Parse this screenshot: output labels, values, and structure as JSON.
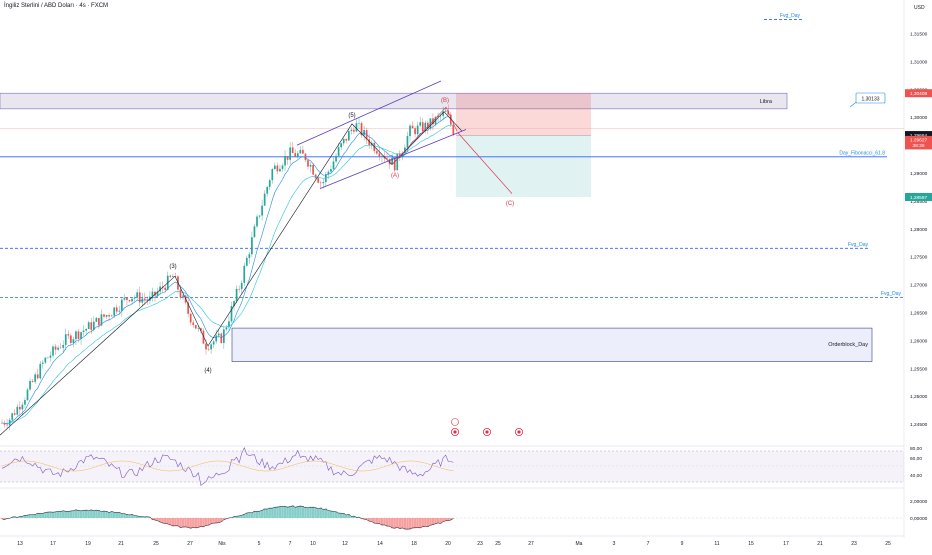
{
  "header": {
    "symbol_title": "İngiliz Sterlini / ABD Doları · 4s · FXCM",
    "currency": "USD"
  },
  "colors": {
    "up": "#26a69a",
    "down": "#ef5350",
    "blue_line": "#2962ff",
    "wave_purple": "#5b3cc4",
    "wave_red": "#e0314b",
    "ema": "#1e88e5",
    "grid": "#eef0f3"
  },
  "chart_data": {
    "type": "candlestick",
    "instrument": "GBP/USD",
    "timeframe": "4s",
    "y_axis": {
      "ticks": [
        "1,31500",
        "1,31000",
        "1,30500",
        "1,30000",
        "1,29500",
        "1,29000",
        "1,28500",
        "1,28000",
        "1,27500",
        "1,27000",
        "1,26500",
        "1,26000",
        "1,25500",
        "1,25000",
        "1,24500"
      ],
      "ylim": [
        1.2425,
        1.3185
      ]
    },
    "x_axis": {
      "ticks": [
        "13",
        "17",
        "19",
        "21",
        "25",
        "27",
        "Nis",
        "5",
        "7",
        "10",
        "12",
        "14",
        "18",
        "20",
        "23",
        "25",
        "27",
        "Ma",
        "3",
        "7",
        "9",
        "11",
        "15",
        "17",
        "21",
        "23",
        "25"
      ]
    },
    "price_labels": [
      {
        "text": "1,30408",
        "color": "#ef5350"
      },
      {
        "text": "1,29664",
        "color": "#131722"
      },
      {
        "text": "1,29627",
        "color": "#ef5350"
      },
      {
        "text": "38:38",
        "color": "#ef5350"
      },
      {
        "text": "1,28567",
        "color": "#26a69a"
      }
    ],
    "levels": [
      {
        "label": "Fvg_Day",
        "price": 1.3175,
        "style": "dashed"
      },
      {
        "label": "Day_Fibonacci_61.8",
        "price": 1.2929,
        "style": "solid"
      },
      {
        "label": "Fvg_Day",
        "price": 1.2765,
        "style": "dashed"
      },
      {
        "label": "Fvg_Day",
        "price": 1.2677,
        "style": "dashed"
      }
    ],
    "zones": [
      {
        "label": "Libra",
        "top": 1.3043,
        "bottom": 1.3015
      },
      {
        "label": "Orderblock_Day",
        "top": 1.2622,
        "bottom": 1.2562
      }
    ],
    "callout": "1,30133",
    "wave_labels": [
      "(3)",
      "(4)",
      "(5)",
      "(A)",
      "(B)",
      "(C)"
    ],
    "rsi": {
      "ticks": [
        "80,00",
        "60,00",
        "40,00"
      ]
    },
    "macd": {
      "ticks": [
        "2,00000",
        "0,00000"
      ]
    }
  }
}
